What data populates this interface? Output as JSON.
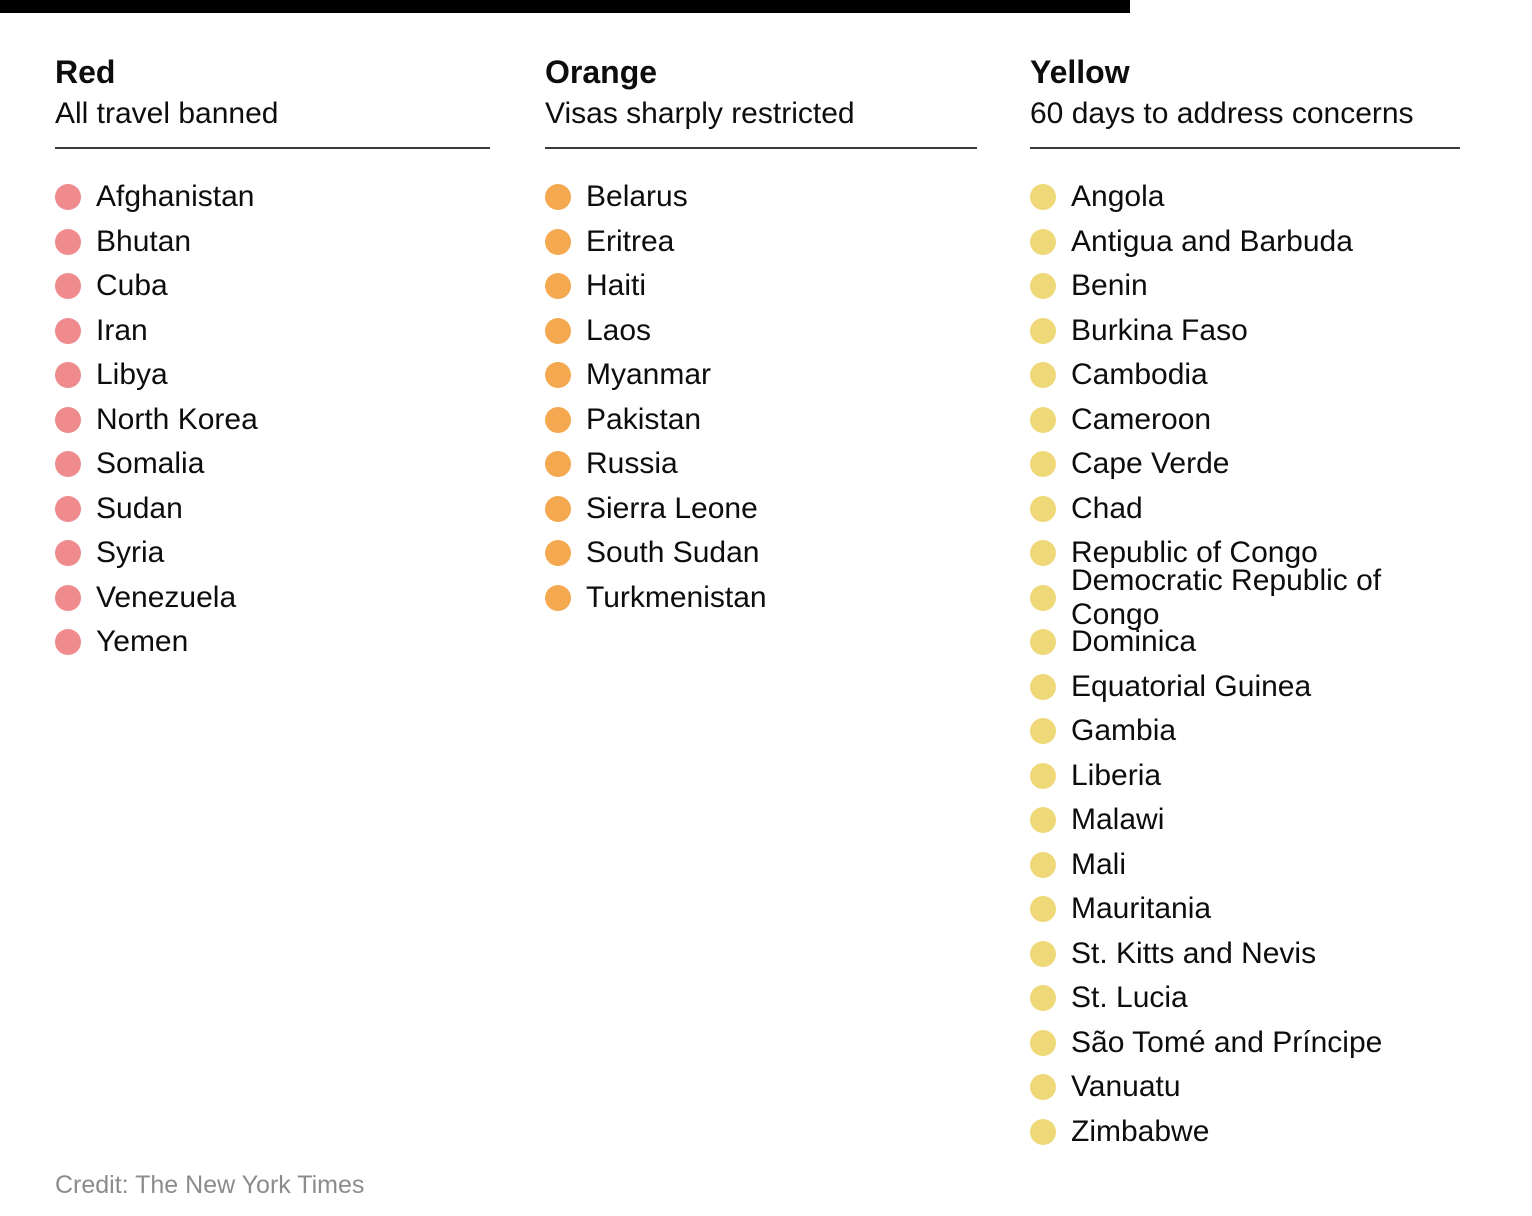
{
  "top_bar": {
    "color": "#000000"
  },
  "chart_data": {
    "type": "table",
    "series": [
      {
        "name": "Red",
        "description": "All travel banned",
        "color": "#ef8b8c",
        "countries": [
          "Afghanistan",
          "Bhutan",
          "Cuba",
          "Iran",
          "Libya",
          "North Korea",
          "Somalia",
          "Sudan",
          "Syria",
          "Venezuela",
          "Yemen"
        ]
      },
      {
        "name": "Orange",
        "description": "Visas sharply restricted",
        "color": "#f4a950",
        "countries": [
          "Belarus",
          "Eritrea",
          "Haiti",
          "Laos",
          "Myanmar",
          "Pakistan",
          "Russia",
          "Sierra Leone",
          "South Sudan",
          "Turkmenistan"
        ]
      },
      {
        "name": "Yellow",
        "description": "60 days to address concerns",
        "color": "#efd878",
        "countries": [
          "Angola",
          "Antigua and Barbuda",
          "Benin",
          "Burkina Faso",
          "Cambodia",
          "Cameroon",
          "Cape Verde",
          "Chad",
          "Republic of Congo",
          "Democratic Republic of Congo",
          "Dominica",
          "Equatorial Guinea",
          "Gambia",
          "Liberia",
          "Malawi",
          "Mali",
          "Mauritania",
          "St. Kitts and Nevis",
          "St. Lucia",
          "São Tomé and Príncipe",
          "Vanuatu",
          "Zimbabwe"
        ]
      }
    ]
  },
  "credit": "Credit: The New York Times",
  "colors": {
    "red_dot": "#ef8b8c",
    "orange_dot": "#f4a950",
    "yellow_dot": "#efd878",
    "rule": "#3a3a3a",
    "credit_text": "#8c8c8c",
    "top_bar": "#000000"
  }
}
